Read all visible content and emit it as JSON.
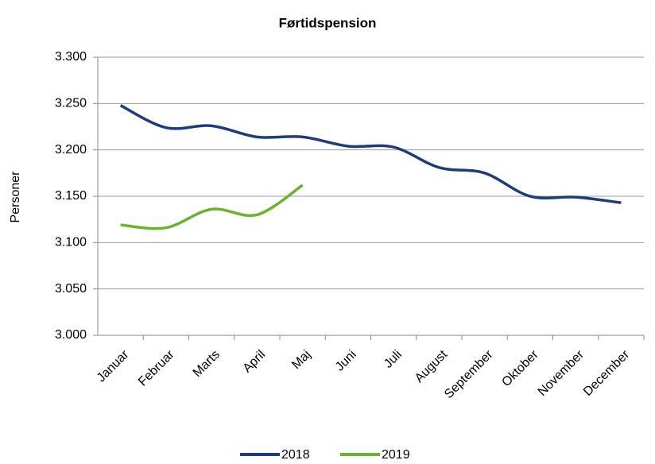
{
  "chart_data": {
    "type": "line",
    "title": "Førtidspension",
    "y_label": "Personer",
    "categories": [
      "Januar",
      "Februar",
      "Marts",
      "April",
      "Maj",
      "Juni",
      "Juli",
      "August",
      "September",
      "Oktober",
      "November",
      "December"
    ],
    "series": [
      {
        "name": "2018",
        "color": "#1f3c7a",
        "values": [
          3248,
          3224,
          3226,
          3214,
          3214,
          3204,
          3203,
          3181,
          3175,
          3150,
          3149,
          3143
        ]
      },
      {
        "name": "2019",
        "color": "#6ab42d",
        "values": [
          3119,
          3116,
          3136,
          3130,
          3162,
          null,
          null,
          null,
          null,
          null,
          null,
          null
        ]
      }
    ],
    "ylim": [
      3000,
      3300
    ],
    "yticks": [
      {
        "value": 3000,
        "label": "3.000"
      },
      {
        "value": 3050,
        "label": "3.050"
      },
      {
        "value": 3100,
        "label": "3.100"
      },
      {
        "value": 3150,
        "label": "3.150"
      },
      {
        "value": 3200,
        "label": "3.200"
      },
      {
        "value": 3250,
        "label": "3.250"
      },
      {
        "value": 3300,
        "label": "3.300"
      }
    ],
    "grid": true,
    "legend": "bottom"
  }
}
